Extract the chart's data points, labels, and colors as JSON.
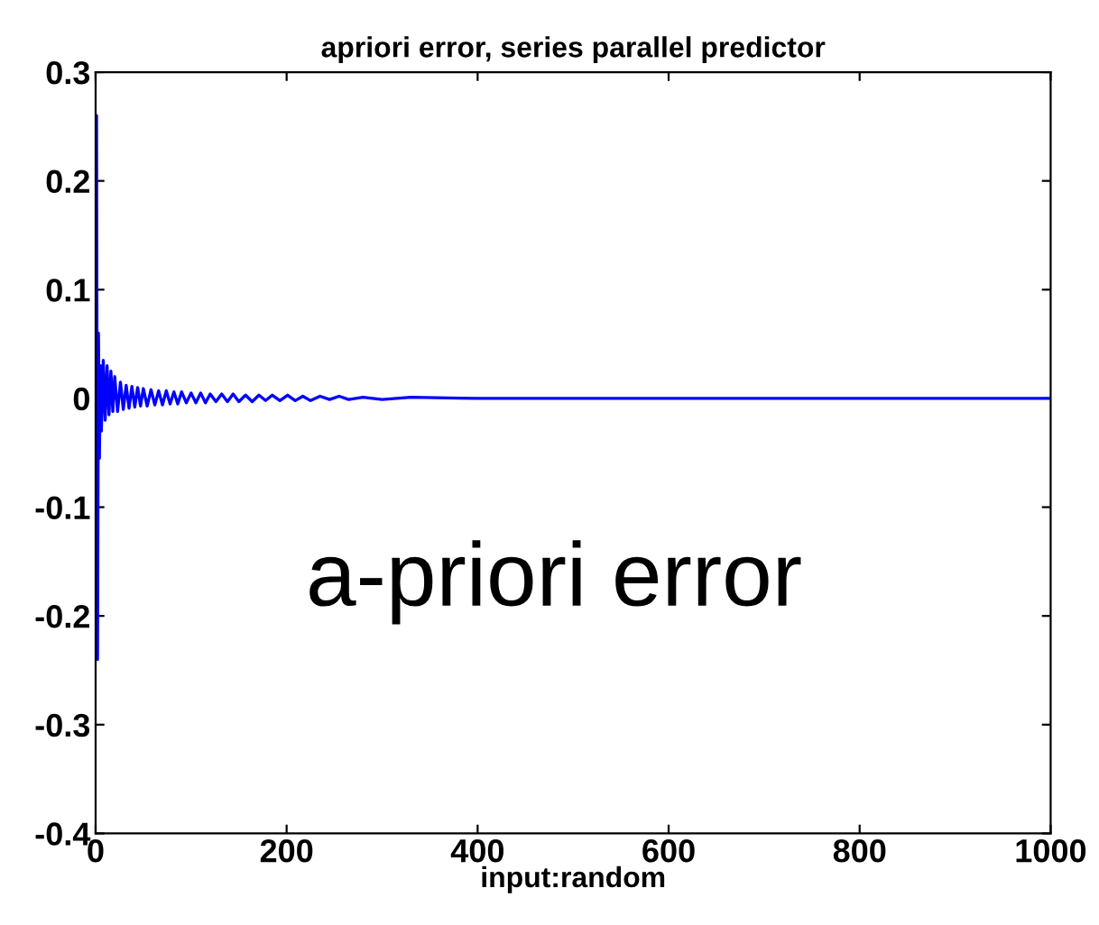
{
  "chart_data": {
    "type": "line",
    "title": "apriori error, series parallel predictor",
    "xlabel": "input:random",
    "annotations": [
      "a-priori error"
    ],
    "series": [
      {
        "color": "#0000ff",
        "x": [
          0,
          1,
          2,
          3,
          4,
          5,
          6,
          8,
          10,
          12,
          14,
          16,
          18,
          20,
          23,
          26,
          29,
          32,
          35,
          38,
          41,
          44,
          47,
          50,
          54,
          58,
          62,
          66,
          70,
          74,
          78,
          82,
          86,
          90,
          95,
          100,
          105,
          110,
          115,
          120,
          126,
          132,
          138,
          144,
          150,
          157,
          164,
          171,
          178,
          185,
          193,
          201,
          209,
          217,
          225,
          235,
          245,
          255,
          265,
          280,
          300,
          330,
          400,
          500,
          1000
        ],
        "values": [
          0,
          0.26,
          -0.24,
          0.06,
          -0.055,
          0.03,
          -0.03,
          0.035,
          -0.02,
          0.03,
          -0.015,
          0.025,
          -0.012,
          0.02,
          -0.012,
          0.015,
          -0.01,
          0.012,
          -0.009,
          0.011,
          -0.008,
          0.01,
          -0.007,
          0.009,
          -0.007,
          0.008,
          -0.006,
          0.007,
          -0.006,
          0.007,
          -0.005,
          0.006,
          -0.005,
          0.006,
          -0.004,
          0.005,
          -0.004,
          0.005,
          -0.004,
          0.004,
          -0.003,
          0.004,
          -0.003,
          0.004,
          -0.003,
          0.003,
          -0.003,
          0.003,
          -0.002,
          0.003,
          -0.002,
          0.003,
          -0.002,
          0.002,
          -0.002,
          0.002,
          -0.001,
          0.002,
          -0.001,
          0.001,
          -0.001,
          0.001,
          0,
          0,
          0
        ]
      }
    ],
    "xlim": [
      0,
      1000
    ],
    "xticks": [
      0,
      200,
      400,
      600,
      800,
      1000
    ],
    "ylim": [
      -0.4,
      0.3
    ],
    "yticks": [
      -0.4,
      -0.3,
      -0.2,
      -0.1,
      0,
      0.1,
      0.2,
      0.3
    ],
    "grid": false,
    "marker": "none",
    "line_style": "solid"
  }
}
